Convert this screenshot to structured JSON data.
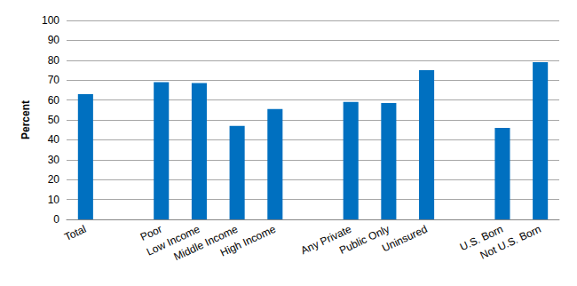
{
  "chart_data": {
    "type": "bar",
    "y_label": "Percent",
    "categories": [
      "Total",
      null,
      "Poor",
      "Low Income",
      "Middle Income",
      "High Income",
      null,
      "Any Private",
      "Public Only",
      "Uninsured",
      null,
      "U.S. Born",
      "Not U.S. Born"
    ],
    "values": [
      63,
      null,
      69,
      68.5,
      47,
      55.5,
      null,
      59,
      58.5,
      75,
      null,
      46,
      79
    ],
    "color": "#0070c0",
    "ylim": [
      0,
      100
    ],
    "yticks": [
      0,
      10,
      20,
      30,
      40,
      50,
      60,
      70,
      80,
      90,
      100
    ],
    "grid": true
  }
}
